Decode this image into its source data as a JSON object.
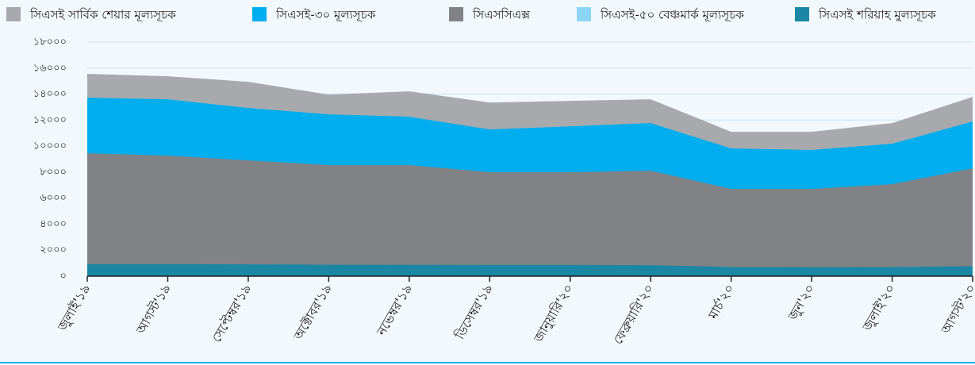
{
  "chart_data": {
    "type": "area",
    "categories": [
      "জুলাই'১৯",
      "আগস্ট'১৯",
      "সেপ্টেম্বর'১৯",
      "অক্টোবর'১৯",
      "নভেম্বর'১৯",
      "ডিসেম্বর'১৯",
      "জানুয়ারি'২০",
      "ফেব্রুয়ারি'২০",
      "মার্চ'২০",
      "জুন'২০",
      "জুলাই'২০",
      "আগস্ট'২০"
    ],
    "series": [
      {
        "name": "সিএসই সার্বিক শেয়ার মূল্যসূচক",
        "color": "#a7a9ac",
        "values": [
          15550,
          15370,
          14940,
          13960,
          14210,
          13350,
          13480,
          13600,
          11100,
          11100,
          11770,
          13780
        ]
      },
      {
        "name": "সিএসই-৩০ মূল্যসূচক",
        "color": "#00aeef",
        "values": [
          13720,
          13600,
          12930,
          12440,
          12260,
          11280,
          11520,
          11770,
          9820,
          9700,
          10180,
          11890
        ]
      },
      {
        "name": "সিএসসিএক্স",
        "color": "#808285",
        "values": [
          9450,
          9270,
          8900,
          8540,
          8540,
          7990,
          7990,
          8110,
          6710,
          6710,
          7070,
          8290
        ]
      },
      {
        "name": "সিএসই-৫০ বেঞ্চমার্ক মূল্যসূচক",
        "color": "#8dd5f5",
        "values": [
          900,
          900,
          890,
          860,
          850,
          840,
          840,
          830,
          680,
          670,
          680,
          740
        ]
      },
      {
        "name": "সিএসই শরিয়াহ মুল্যসূচক",
        "color": "#1b87a5",
        "values": [
          920,
          920,
          910,
          880,
          870,
          860,
          860,
          850,
          700,
          690,
          700,
          760
        ]
      }
    ],
    "ylim": [
      0,
      18000
    ],
    "yticks": [
      {
        "value": 0,
        "label": "০"
      },
      {
        "value": 2000,
        "label": "২০০০"
      },
      {
        "value": 4000,
        "label": "৪০০০"
      },
      {
        "value": 6000,
        "label": "৬০০০"
      },
      {
        "value": 8000,
        "label": "৮০০০"
      },
      {
        "value": 10000,
        "label": "১০০০০"
      },
      {
        "value": 12000,
        "label": "১২০০০"
      },
      {
        "value": 14000,
        "label": "১৪০০০"
      },
      {
        "value": 16000,
        "label": "১৬০০০"
      },
      {
        "value": 18000,
        "label": "১৮০০০"
      }
    ],
    "grid": true
  }
}
